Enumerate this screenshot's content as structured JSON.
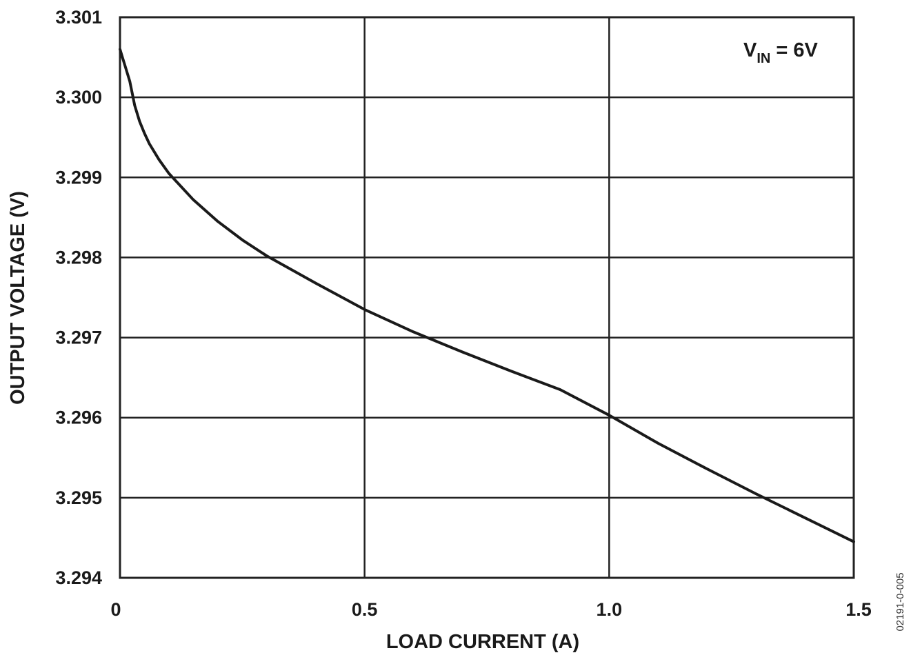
{
  "chart_data": {
    "type": "line",
    "xlabel": "LOAD CURRENT (A)",
    "ylabel": "OUTPUT VOLTAGE (V)",
    "xlim": [
      0,
      1.5
    ],
    "ylim": [
      3.294,
      3.301
    ],
    "x_ticks": [
      "0",
      "0.5",
      "1.0",
      "1.5"
    ],
    "x_tick_values": [
      0,
      0.5,
      1.0,
      1.5
    ],
    "y_ticks": [
      "3.301",
      "3.300",
      "3.299",
      "3.298",
      "3.297",
      "3.296",
      "3.295",
      "3.294"
    ],
    "y_tick_values": [
      3.301,
      3.3,
      3.299,
      3.298,
      3.297,
      3.296,
      3.295,
      3.294
    ],
    "grid": true,
    "annotation": {
      "main": "V",
      "subscript": "IN",
      "suffix": " = 6V"
    },
    "figure_id": "02191-0-005",
    "series": [
      {
        "x": [
          0,
          0.005,
          0.01,
          0.02,
          0.03,
          0.04,
          0.05,
          0.06,
          0.08,
          0.1,
          0.15,
          0.2,
          0.25,
          0.3,
          0.4,
          0.5,
          0.6,
          0.7,
          0.8,
          0.9,
          1.0,
          1.1,
          1.2,
          1.3,
          1.4,
          1.5
        ],
        "y": [
          3.3006,
          3.3005,
          3.3004,
          3.3002,
          3.2999,
          3.2997,
          3.29955,
          3.29942,
          3.29922,
          3.29905,
          3.29872,
          3.29845,
          3.29822,
          3.29802,
          3.29768,
          3.29735,
          3.29707,
          3.29682,
          3.29658,
          3.29635,
          3.29603,
          3.29568,
          3.29536,
          3.29505,
          3.29475,
          3.29445
        ]
      }
    ]
  }
}
